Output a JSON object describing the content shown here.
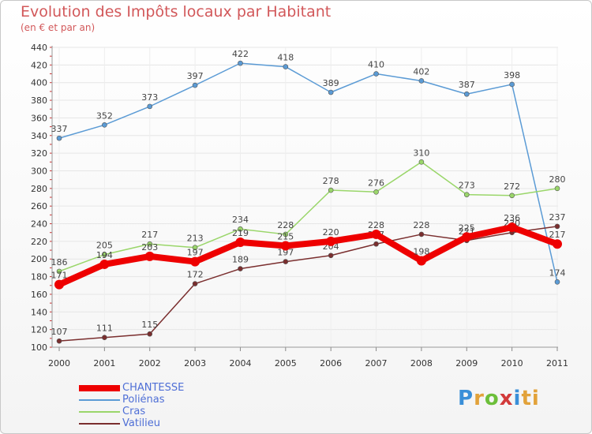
{
  "header": {
    "title": "Evolution des Impôts locaux par Habitant",
    "subtitle": "(en € et par an)"
  },
  "logo": {
    "text": "Proxiti",
    "letters": [
      "P",
      "r",
      "o",
      "x",
      "i",
      "ti"
    ]
  },
  "chart_data": {
    "type": "line",
    "title": "Evolution des Impôts locaux par Habitant",
    "subtitle": "(en € et par an)",
    "xlabel": "",
    "ylabel": "",
    "x": [
      "2000",
      "2001",
      "2002",
      "2003",
      "2004",
      "2005",
      "2006",
      "2007",
      "2008",
      "2009",
      "2010",
      "2011"
    ],
    "ylim": [
      100,
      440
    ],
    "yticks": [
      100,
      120,
      140,
      160,
      180,
      200,
      220,
      240,
      260,
      280,
      300,
      320,
      340,
      360,
      380,
      400,
      420,
      440
    ],
    "grid": true,
    "legend_position": "bottom-left",
    "series": [
      {
        "name": "Poliénas",
        "color": "#5b9bd5",
        "values": [
          337,
          352,
          373,
          397,
          422,
          418,
          389,
          410,
          402,
          387,
          398,
          174
        ],
        "labels": [
          "337",
          "352",
          "373",
          "397",
          "422",
          "418",
          "389",
          "410",
          "402",
          "387",
          "398",
          "174"
        ]
      },
      {
        "name": "Cras",
        "color": "#9ad66a",
        "values": [
          186,
          205,
          217,
          213,
          234,
          228,
          278,
          276,
          310,
          273,
          272,
          280
        ],
        "labels": [
          "186",
          "205",
          "217",
          "213",
          "234",
          "228",
          "278",
          "276",
          "310",
          "273",
          "272",
          "280"
        ]
      },
      {
        "name": "Vatilieu",
        "color": "#7a2e2e",
        "values": [
          107,
          111,
          115,
          172,
          189,
          197,
          204,
          217,
          228,
          221,
          230,
          237
        ],
        "labels": [
          "107",
          "111",
          "115",
          "172",
          "189",
          "197",
          "204",
          "217",
          "228",
          "221",
          "230",
          "237"
        ]
      },
      {
        "name": "CHANTESSE",
        "color": "#ee0000",
        "values": [
          171,
          194,
          203,
          197,
          219,
          215,
          220,
          228,
          198,
          225,
          236,
          217
        ],
        "labels": [
          "171",
          "194",
          "203",
          "197",
          "219",
          "215",
          "220",
          "228",
          "198",
          "225",
          "236",
          "217"
        ]
      }
    ],
    "legend": [
      {
        "name": "CHANTESSE",
        "color": "#ee0000"
      },
      {
        "name": "Poliénas",
        "color": "#5b9bd5"
      },
      {
        "name": "Cras",
        "color": "#9ad66a"
      },
      {
        "name": "Vatilieu",
        "color": "#7a2e2e"
      }
    ]
  }
}
